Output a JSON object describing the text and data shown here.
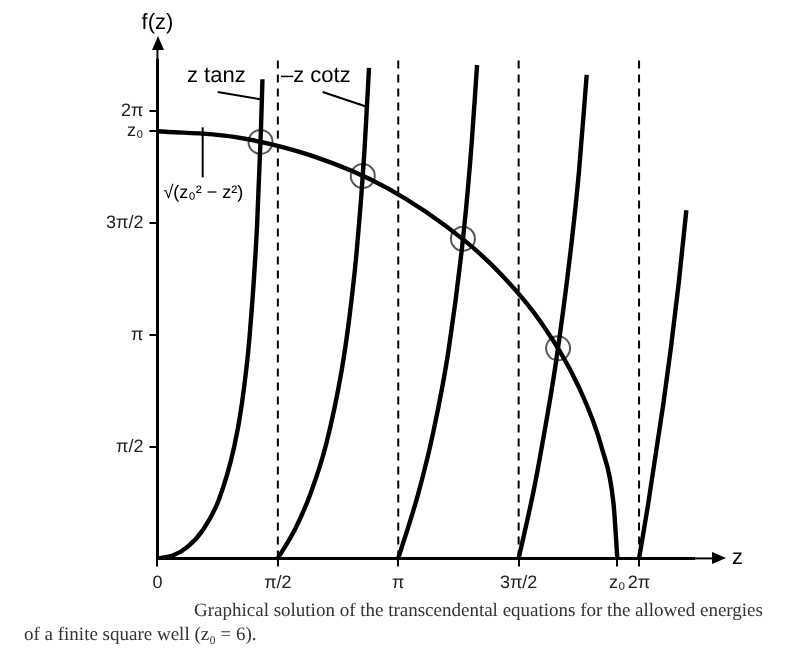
{
  "chart_data": {
    "type": "line",
    "xlabel": "z",
    "ylabel": "f(z)",
    "xlim": [
      0,
      7
    ],
    "ylim": [
      0,
      7
    ],
    "xticks": [
      0,
      {
        "value": 1.5708,
        "label": "π/2"
      },
      {
        "value": 3.1416,
        "label": "π"
      },
      {
        "value": 4.7124,
        "label": "3π/2"
      },
      {
        "value": 6,
        "label": "z₀"
      },
      {
        "value": 6.2832,
        "label": "2π"
      }
    ],
    "yticks": [
      {
        "value": 1.5708,
        "label": "π/2"
      },
      {
        "value": 3.1416,
        "label": "π"
      },
      {
        "value": 4.7124,
        "label": "3π/2"
      },
      {
        "value": 6,
        "label": "z₀"
      },
      {
        "value": 6.2832,
        "label": "2π"
      }
    ],
    "grid": false,
    "legend": false,
    "marker": "none",
    "line_style": "solid",
    "series": [
      {
        "color": "#000000",
        "x": [
          0,
          0.2,
          0.4,
          0.6,
          0.8,
          1.0,
          1.1,
          1.2,
          1.3,
          1.35,
          1.37
        ],
        "values": [
          0,
          0.04,
          0.17,
          0.41,
          0.82,
          1.56,
          2.16,
          3.09,
          4.68,
          6.01,
          6.73
        ]
      },
      {
        "color": "#000000",
        "x": [
          1.5708,
          1.8,
          2.0,
          2.2,
          2.4,
          2.5,
          2.6,
          2.7,
          2.76
        ],
        "values": [
          0,
          0.42,
          0.92,
          1.6,
          2.62,
          3.35,
          4.32,
          5.71,
          6.89
        ]
      },
      {
        "color": "#000000",
        "x": [
          3.1416,
          3.4,
          3.6,
          3.8,
          4.0,
          4.1,
          4.17
        ],
        "values": [
          0,
          0.9,
          1.78,
          2.94,
          4.63,
          5.84,
          6.93
        ]
      },
      {
        "color": "#000000",
        "x": [
          4.7124,
          4.9,
          5.0,
          5.2,
          5.4,
          5.5,
          5.6
        ],
        "values": [
          0,
          0.91,
          1.48,
          2.76,
          4.41,
          5.44,
          6.79
        ]
      },
      {
        "color": "#000000",
        "x": [
          6.2832,
          6.4,
          6.6,
          6.7,
          6.8,
          6.9
        ],
        "values": [
          0,
          0.75,
          2.17,
          2.97,
          3.86,
          4.89
        ]
      },
      {
        "color": "#000000",
        "x": [
          0,
          1,
          2,
          3,
          4,
          4.5,
          5,
          5.5,
          5.8,
          5.95,
          6
        ],
        "values": [
          6,
          5.92,
          5.66,
          5.2,
          4.47,
          3.97,
          3.32,
          2.4,
          1.54,
          0.77,
          0
        ]
      },
      {
        "type": "scatter",
        "marker": "circle",
        "color": "#555555",
        "x": [
          1.345,
          2.679,
          3.985,
          5.227
        ],
        "values": [
          5.85,
          5.37,
          4.49,
          2.95
        ]
      }
    ],
    "ref_lines": [
      {
        "axis": "x",
        "value": 1.5708,
        "color": "#000000",
        "line_style": "dashed"
      },
      {
        "axis": "x",
        "value": 3.1416,
        "color": "#000000",
        "line_style": "dashed"
      },
      {
        "axis": "x",
        "value": 4.7124,
        "color": "#000000",
        "line_style": "dashed"
      },
      {
        "axis": "x",
        "value": 6.2832,
        "color": "#000000",
        "line_style": "dashed"
      }
    ],
    "annotations": [
      {
        "text": "z tanz",
        "x": 1.36,
        "y": 6.36
      },
      {
        "text": "–z cotz",
        "x": 2.73,
        "y": 6.26
      },
      {
        "text": "√(z₀² − z²)",
        "x": 0.59,
        "y": 5.97
      },
      "Graphical solution of the transcendental equations for the allowed energies of a finite square well (z₀ = 6)."
    ]
  }
}
